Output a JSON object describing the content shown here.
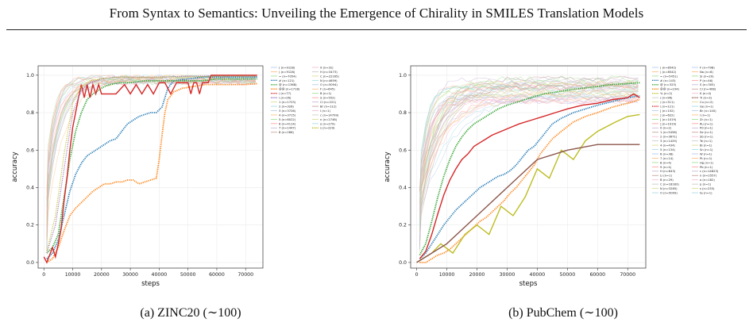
{
  "header": {
    "title": "From Syntax to Semantics: Unveiling the Emergence of Chirality in SMILES Translation Models"
  },
  "panels": [
    {
      "caption": "(a) ZINC20 (∼100)",
      "legend": [
        "( (n=9128)",
        ") (n=9128)",
        "= (n=7054)",
        "# (n=121)",
        "@ (n=1368)",
        "@@ (n=1718)",
        "/ (n=77)",
        "\\ (n=26)",
        "1 (n=1723)",
        "2 (n=326)",
        "3 (n=3726)",
        "4 (n=3715)",
        "5 (n=6022)",
        "6 (n=4114)",
        "7 (n=1447)",
        "8 (n=266)",
        "9 (n=32)",
        "H (n=3473)",
        "C (n=22165)",
        "N (n=4659)",
        "O (n=5094)",
        "F (n=645)",
        "B (n=1)",
        "S (n=552)",
        "Cl (n=221)",
        "Br (n=112)",
        "I (n=1)",
        "c (n=14799)",
        "n (n=2746)",
        "o (n=279)",
        "s (n=229)"
      ]
    },
    {
      "caption": "(b) PubChem (∼100)",
      "legend": [
        "( (n=8542)",
        ") (n=8542)",
        "= (n=5451)",
        "# (n=143)",
        "@ (n=323)",
        "@@ (n=234)",
        "% (n=2)",
        "/ (n=96)",
        "/ (n=311)",
        "\\ (n=121)",
        "[ (n=152)",
        "] (n=622)",
        "[ (n=1019)",
        "] (n=1019)",
        "0 (n=2)",
        "1 (n=5456)",
        "2 (n=3671)",
        "3 (n=1429)",
        "4 (n=434)",
        "5 (n=134)",
        "6 (n=38)",
        "7 (n=14)",
        "8 (n=4)",
        "9 (n=4)",
        "H (n=643)",
        "Li (n=1)",
        "B (n=29)",
        "C (n=18183)",
        "N (n=3265)",
        "O (n=5009)",
        "F (n=798)",
        "Na (n=8)",
        "Si (n=20)",
        "P (n=46)",
        "S (n=305)",
        "Cl (n=408)",
        "K (n=4)",
        "Ti (n=3)",
        "Cu (n=2)",
        "Ge (n=1)",
        "Br (n=140)",
        "I (n=1)",
        "Zr (n=1)",
        "Ru (n=1)",
        "Pd (n=1)",
        "Se (n=1)",
        "Sb (n=1)",
        "Te (n=1)",
        "Bi (n=1)",
        "Sn (n=1)",
        "W (n=1)",
        "Pt (n=1)",
        "Hg (n=1)",
        "Pb (n=1)",
        "c (n=14823)",
        "n (n=2557)",
        "o (n=182)",
        "p (n=1)",
        "s (n=235)",
        "te (n=1)"
      ]
    }
  ],
  "colors": {
    "blue": "#1f77b4",
    "orange": "#ff7f0e",
    "green": "#2ca02c",
    "red": "#d62728",
    "purple": "#9467bd",
    "olive": "#bcbd22"
  },
  "chart_data": [
    {
      "type": "line",
      "title": "",
      "xlabel": "steps",
      "ylabel": "accuracy",
      "xlim": [
        -2000,
        76000
      ],
      "ylim": [
        -0.03,
        1.05
      ],
      "xticks": [
        0,
        10000,
        20000,
        30000,
        40000,
        50000,
        60000,
        70000
      ],
      "yticks": [
        0.0,
        0.2,
        0.4,
        0.6,
        0.8,
        1.0
      ],
      "xtick_labels": [
        "0",
        "10000",
        "20000",
        "30000",
        "40000",
        "50000",
        "60000",
        "70000"
      ],
      "ytick_labels": [
        "0.0",
        "0.2",
        "0.4",
        "0.6",
        "0.8",
        "1.0"
      ],
      "grid": true,
      "legend_position": "right",
      "series": [
        {
          "name": "# (n=121)",
          "color": "#1f77b4",
          "style": "dotted-bold",
          "x": [
            1000,
            3000,
            5000,
            7000,
            9000,
            11000,
            13000,
            15000,
            17000,
            19000,
            21000,
            23000,
            25000,
            27000,
            29000,
            31000,
            33000,
            35000,
            37000,
            39000,
            41000,
            43000,
            45000,
            50000,
            55000,
            60000,
            65000,
            70000,
            74000
          ],
          "y": [
            0.02,
            0.05,
            0.12,
            0.25,
            0.38,
            0.47,
            0.53,
            0.57,
            0.59,
            0.61,
            0.63,
            0.65,
            0.66,
            0.7,
            0.74,
            0.76,
            0.78,
            0.79,
            0.8,
            0.8,
            0.83,
            0.93,
            0.97,
            0.98,
            0.99,
            0.99,
            0.99,
            0.99,
            0.99
          ]
        },
        {
          "name": "@@ (n=1718)",
          "color": "#ff7f0e",
          "style": "dotted-bold",
          "x": [
            1000,
            3000,
            5000,
            7000,
            9000,
            11000,
            13000,
            15000,
            17000,
            19000,
            21000,
            23000,
            25000,
            27000,
            29000,
            31000,
            33000,
            35000,
            37000,
            39000,
            40000,
            41000,
            42000,
            43000,
            45000,
            48000,
            52000,
            56000,
            60000,
            65000,
            70000,
            74000
          ],
          "y": [
            0.0,
            0.02,
            0.08,
            0.17,
            0.25,
            0.29,
            0.32,
            0.35,
            0.38,
            0.4,
            0.42,
            0.42,
            0.43,
            0.43,
            0.44,
            0.44,
            0.42,
            0.43,
            0.44,
            0.45,
            0.55,
            0.68,
            0.8,
            0.87,
            0.91,
            0.93,
            0.94,
            0.95,
            0.95,
            0.95,
            0.95,
            0.955
          ]
        },
        {
          "name": "@ (n=1368)",
          "color": "#2ca02c",
          "style": "dotted-bold",
          "x": [
            1000,
            3000,
            5000,
            7000,
            9000,
            11000,
            13000,
            15000,
            17000,
            19000,
            21000,
            23000,
            26000,
            30000,
            35000,
            40000,
            45000,
            50000,
            55000,
            60000,
            65000,
            70000,
            74000
          ],
          "y": [
            0.05,
            0.08,
            0.15,
            0.35,
            0.55,
            0.7,
            0.8,
            0.87,
            0.9,
            0.92,
            0.94,
            0.95,
            0.96,
            0.96,
            0.97,
            0.97,
            0.97,
            0.97,
            0.97,
            0.98,
            0.98,
            0.98,
            0.98
          ]
        },
        {
          "name": "/ (n=77)",
          "color": "#d62728",
          "style": "solid",
          "x": [
            0,
            1000,
            2000,
            3000,
            4000,
            5000,
            6000,
            7000,
            8000,
            9000,
            10000,
            11000,
            12000,
            13000,
            14000,
            15000,
            16000,
            17000,
            18000,
            19000,
            20000,
            25000,
            28000,
            30000,
            32000,
            34000,
            36000,
            38000,
            40000,
            42000,
            44000,
            46000,
            48000,
            50000,
            51000,
            52000,
            53000,
            54000,
            55000,
            56000,
            57000,
            58000,
            60000,
            65000,
            70000,
            74000
          ],
          "y": [
            0.03,
            0.0,
            0.04,
            0.08,
            0.03,
            0.1,
            0.18,
            0.33,
            0.45,
            0.6,
            0.72,
            0.8,
            0.88,
            0.95,
            0.88,
            0.95,
            0.88,
            0.95,
            0.9,
            0.95,
            0.9,
            0.9,
            0.95,
            0.9,
            0.95,
            0.9,
            0.95,
            0.9,
            0.96,
            0.96,
            0.9,
            0.96,
            0.96,
            0.96,
            0.9,
            0.96,
            0.96,
            0.9,
            0.96,
            0.96,
            0.96,
            1.0,
            1.0,
            1.0,
            1.0,
            1.0
          ]
        },
        {
          "name": "\\ (n=26)",
          "color": "#9467bd",
          "style": "dotted",
          "x": [
            1000,
            4000,
            7000,
            10000,
            13000,
            16000,
            20000,
            25000,
            30000,
            40000,
            50000,
            60000,
            70000,
            74000
          ],
          "y": [
            0.05,
            0.2,
            0.5,
            0.8,
            0.92,
            0.96,
            0.98,
            0.99,
            0.99,
            0.99,
            0.995,
            0.995,
            0.995,
            0.995
          ]
        },
        {
          "name": "s (n=229)",
          "color": "#bcbd22",
          "style": "dotted",
          "x": [
            1000,
            4000,
            7000,
            10000,
            13000,
            16000,
            20000,
            25000,
            30000,
            40000,
            50000,
            60000,
            70000,
            74000
          ],
          "y": [
            0.06,
            0.25,
            0.58,
            0.85,
            0.94,
            0.97,
            0.98,
            0.99,
            0.99,
            0.99,
            0.99,
            0.995,
            0.995,
            0.995
          ]
        }
      ]
    },
    {
      "type": "line",
      "title": "",
      "xlabel": "steps",
      "ylabel": "accuracy",
      "xlim": [
        -2000,
        76000
      ],
      "ylim": [
        -0.03,
        1.05
      ],
      "xticks": [
        0,
        10000,
        20000,
        30000,
        40000,
        50000,
        60000,
        70000
      ],
      "yticks": [
        0.0,
        0.2,
        0.4,
        0.6,
        0.8,
        1.0
      ],
      "xtick_labels": [
        "0",
        "10000",
        "20000",
        "30000",
        "40000",
        "50000",
        "60000",
        "70000"
      ],
      "ytick_labels": [
        "0.0",
        "0.2",
        "0.4",
        "0.6",
        "0.8",
        "1.0"
      ],
      "grid": true,
      "legend_position": "right",
      "series": [
        {
          "name": "# (n=143)",
          "color": "#1f77b4",
          "style": "dotted-bold",
          "x": [
            1000,
            3000,
            5000,
            7000,
            9000,
            11000,
            13000,
            15000,
            17000,
            19000,
            21000,
            23000,
            25000,
            27000,
            29000,
            31000,
            33000,
            35000,
            37000,
            39000,
            41000,
            43000,
            45000,
            48000,
            52000,
            56000,
            60000,
            65000,
            70000,
            74000
          ],
          "y": [
            0.02,
            0.05,
            0.1,
            0.15,
            0.2,
            0.24,
            0.28,
            0.31,
            0.34,
            0.37,
            0.4,
            0.42,
            0.44,
            0.46,
            0.47,
            0.49,
            0.52,
            0.56,
            0.6,
            0.62,
            0.66,
            0.7,
            0.74,
            0.77,
            0.8,
            0.82,
            0.84,
            0.86,
            0.88,
            0.89
          ]
        },
        {
          "name": "@@ (n=234)",
          "color": "#ff7f0e",
          "style": "dotted-bold",
          "x": [
            1000,
            3000,
            5000,
            7000,
            9000,
            11000,
            13000,
            15000,
            17000,
            19000,
            21000,
            23000,
            25000,
            27000,
            29000,
            31000,
            33000,
            35000,
            37000,
            39000,
            41000,
            43000,
            45000,
            48000,
            52000,
            56000,
            60000,
            65000,
            70000,
            74000
          ],
          "y": [
            0.0,
            0.0,
            0.02,
            0.04,
            0.05,
            0.07,
            0.1,
            0.13,
            0.16,
            0.19,
            0.22,
            0.24,
            0.27,
            0.3,
            0.33,
            0.37,
            0.4,
            0.44,
            0.48,
            0.52,
            0.58,
            0.62,
            0.66,
            0.7,
            0.75,
            0.78,
            0.8,
            0.83,
            0.85,
            0.87
          ]
        },
        {
          "name": "@ (n=323)",
          "color": "#2ca02c",
          "style": "dotted-bold",
          "x": [
            1000,
            3000,
            5000,
            7000,
            9000,
            11000,
            13000,
            15000,
            17000,
            19000,
            21000,
            24000,
            27000,
            30000,
            34000,
            38000,
            42000,
            46000,
            50000,
            55000,
            60000,
            65000,
            70000,
            74000
          ],
          "y": [
            0.04,
            0.1,
            0.22,
            0.35,
            0.46,
            0.55,
            0.62,
            0.67,
            0.71,
            0.74,
            0.76,
            0.79,
            0.82,
            0.84,
            0.86,
            0.88,
            0.9,
            0.91,
            0.92,
            0.93,
            0.94,
            0.95,
            0.955,
            0.96
          ]
        },
        {
          "name": "\\ (n=121)",
          "color": "#d62728",
          "style": "solid",
          "x": [
            1000,
            3000,
            5000,
            7000,
            9000,
            11000,
            13000,
            15000,
            17000,
            19000,
            21000,
            23000,
            25000,
            28000,
            31000,
            34000,
            38000,
            42000,
            46000,
            50000,
            55000,
            60000,
            65000,
            70000,
            72000,
            74000
          ],
          "y": [
            0.02,
            0.06,
            0.15,
            0.26,
            0.36,
            0.44,
            0.5,
            0.55,
            0.58,
            0.62,
            0.64,
            0.66,
            0.68,
            0.7,
            0.72,
            0.74,
            0.76,
            0.78,
            0.8,
            0.82,
            0.84,
            0.85,
            0.87,
            0.88,
            0.9,
            0.88
          ]
        },
        {
          "name": "% (n=2)",
          "color": "#bcbd22",
          "style": "solid",
          "x": [
            0,
            5000,
            8000,
            12000,
            16000,
            20000,
            24000,
            28000,
            32000,
            36000,
            40000,
            44000,
            48000,
            52000,
            56000,
            60000,
            66000,
            70000,
            74000
          ],
          "y": [
            0.0,
            0.05,
            0.1,
            0.05,
            0.15,
            0.2,
            0.15,
            0.3,
            0.25,
            0.35,
            0.5,
            0.45,
            0.6,
            0.55,
            0.65,
            0.7,
            0.75,
            0.78,
            0.79
          ]
        },
        {
          "name": "Ti (n=3)",
          "color": "#8c564b",
          "style": "solid",
          "x": [
            0,
            10000,
            20000,
            30000,
            40000,
            50000,
            60000,
            66000,
            74000
          ],
          "y": [
            0.0,
            0.1,
            0.25,
            0.4,
            0.55,
            0.6,
            0.63,
            0.63,
            0.63
          ]
        }
      ]
    }
  ]
}
